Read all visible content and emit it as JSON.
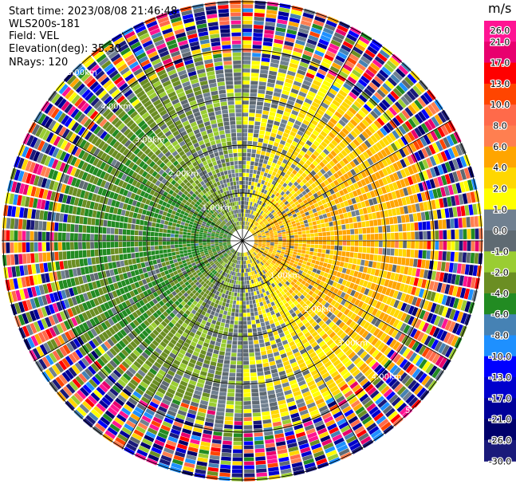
{
  "header": {
    "start_time": "Start time: 2023/08/08 21:46:48",
    "instrument": "WLS200s-181",
    "field": "Field: VEL",
    "elevation": "Elevation(deg): 35.30",
    "nrays": "NRays: 120"
  },
  "chart_data": {
    "type": "heatmap",
    "projection": "polar-ppi",
    "field": "VEL",
    "units": "m/s",
    "nrays": 120,
    "elevation_deg": 35.3,
    "range_rings_km": [
      1.0,
      2.0,
      3.0,
      4.0,
      5.0
    ],
    "ring_labels": [
      "1.00km",
      "2.00km",
      "3.00km",
      "4.00km",
      "5.00km"
    ],
    "spokes_deg": [
      0,
      30,
      60,
      90,
      120,
      150,
      180,
      210,
      240,
      270,
      300,
      330
    ],
    "max_range_km": 5.0,
    "approx_velocity_pattern": {
      "west_half": "negative (-1 to -6 m/s, green)",
      "east_half": "positive (2 to 6 m/s, yellow/orange)",
      "beyond_3.5km": "noise (random colors)"
    },
    "colorbar": {
      "ticks": [
        "26.0",
        "21.0",
        "17.0",
        "13.0",
        "10.0",
        "8.0",
        "6.0",
        "4.0",
        "2.0",
        "1.0",
        "0.0",
        "-1.0",
        "-2.0",
        "-4.0",
        "-6.0",
        "-8.0",
        "-10.0",
        "-13.0",
        "-17.0",
        "-21.0",
        "-26.0",
        "-30.0"
      ],
      "colors": [
        "#ff1493",
        "#e8006e",
        "#ff0000",
        "#ff4500",
        "#ff6a4a",
        "#ff7f50",
        "#ffa500",
        "#ffd700",
        "#ffff00",
        "#708090",
        "#5f6a72",
        "#9acd32",
        "#6b8e23",
        "#228b22",
        "#4682b4",
        "#1e90ff",
        "#0000ff",
        "#0000cd",
        "#000099",
        "#00006b",
        "#1a1a7a"
      ]
    }
  }
}
